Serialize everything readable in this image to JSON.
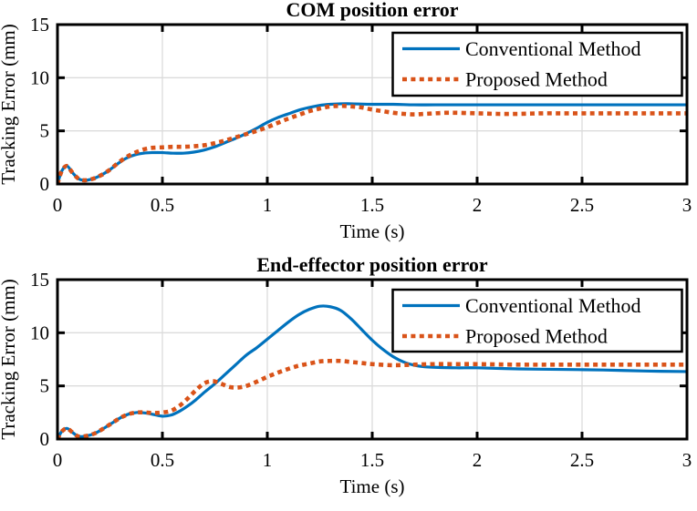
{
  "figure": {
    "background": "#ffffff"
  },
  "colors": {
    "conventional": "#0072BD",
    "proposed": "#D95319",
    "grid": "#DBDBDB",
    "axis": "#000000",
    "legend_background": "#FFFFFF"
  },
  "chart_data": [
    {
      "type": "line",
      "title": "COM position error",
      "xlabel": "Time (s)",
      "ylabel": "Tracking Error (mm)",
      "xlim": [
        0,
        3
      ],
      "ylim": [
        0,
        15
      ],
      "grid": true,
      "legend_position": "upper-right",
      "xticks": {
        "values": [
          0,
          0.5,
          1,
          1.5,
          2,
          2.5,
          3
        ],
        "labels": [
          "0",
          "0.5",
          "1",
          "1.5",
          "2",
          "2.5",
          "3"
        ]
      },
      "yticks": {
        "values": [
          0,
          5,
          10,
          15
        ],
        "labels": [
          "0",
          "5",
          "10",
          "15"
        ]
      },
      "series": [
        {
          "name": "Conventional Method",
          "style": "solid",
          "color": "#0072BD",
          "x": [
            0,
            0.02,
            0.045,
            0.07,
            0.1,
            0.13,
            0.17,
            0.21,
            0.25,
            0.29,
            0.33,
            0.37,
            0.41,
            0.45,
            0.5,
            0.55,
            0.6,
            0.65,
            0.7,
            0.75,
            0.8,
            0.85,
            0.9,
            0.95,
            1.0,
            1.05,
            1.1,
            1.15,
            1.2,
            1.25,
            1.3,
            1.35,
            1.4,
            1.5,
            1.6,
            1.7,
            1.8,
            2.0,
            2.2,
            2.4,
            2.6,
            2.8,
            3.0
          ],
          "y": [
            0,
            1.2,
            1.7,
            1.1,
            0.5,
            0.35,
            0.5,
            0.85,
            1.35,
            1.95,
            2.45,
            2.75,
            2.9,
            2.95,
            2.95,
            2.9,
            2.9,
            3.0,
            3.2,
            3.5,
            3.9,
            4.3,
            4.75,
            5.25,
            5.8,
            6.25,
            6.6,
            6.95,
            7.2,
            7.4,
            7.5,
            7.55,
            7.55,
            7.5,
            7.5,
            7.45,
            7.45,
            7.45,
            7.45,
            7.45,
            7.45,
            7.45,
            7.45
          ]
        },
        {
          "name": "Proposed Method",
          "style": "dotted",
          "color": "#D95319",
          "x": [
            0,
            0.02,
            0.045,
            0.07,
            0.1,
            0.13,
            0.17,
            0.21,
            0.25,
            0.29,
            0.33,
            0.37,
            0.41,
            0.45,
            0.5,
            0.55,
            0.6,
            0.65,
            0.7,
            0.75,
            0.8,
            0.85,
            0.9,
            0.95,
            1.0,
            1.05,
            1.1,
            1.15,
            1.2,
            1.25,
            1.3,
            1.35,
            1.4,
            1.45,
            1.5,
            1.55,
            1.6,
            1.65,
            1.7,
            1.75,
            1.8,
            1.85,
            1.9,
            2.0,
            2.1,
            2.2,
            2.3,
            2.4,
            2.5,
            2.6,
            2.8,
            3.0
          ],
          "y": [
            0,
            1.2,
            1.7,
            1.1,
            0.5,
            0.35,
            0.5,
            0.85,
            1.35,
            2.0,
            2.55,
            2.95,
            3.25,
            3.4,
            3.45,
            3.5,
            3.5,
            3.55,
            3.65,
            3.85,
            4.1,
            4.4,
            4.7,
            5.0,
            5.35,
            5.75,
            6.15,
            6.5,
            6.85,
            7.1,
            7.3,
            7.35,
            7.3,
            7.2,
            7.0,
            6.85,
            6.7,
            6.6,
            6.55,
            6.6,
            6.65,
            6.7,
            6.7,
            6.65,
            6.6,
            6.6,
            6.65,
            6.65,
            6.65,
            6.65,
            6.65,
            6.65
          ]
        }
      ]
    },
    {
      "type": "line",
      "title": "End-effector position error",
      "xlabel": "Time (s)",
      "ylabel": "Tracking Error (mm)",
      "xlim": [
        0,
        3
      ],
      "ylim": [
        0,
        15
      ],
      "grid": true,
      "legend_position": "upper-right",
      "xticks": {
        "values": [
          0,
          0.5,
          1,
          1.5,
          2,
          2.5,
          3
        ],
        "labels": [
          "0",
          "0.5",
          "1",
          "1.5",
          "2",
          "2.5",
          "3"
        ]
      },
      "yticks": {
        "values": [
          0,
          5,
          10,
          15
        ],
        "labels": [
          "0",
          "5",
          "10",
          "15"
        ]
      },
      "series": [
        {
          "name": "Conventional Method",
          "style": "solid",
          "color": "#0072BD",
          "x": [
            0,
            0.02,
            0.045,
            0.07,
            0.1,
            0.14,
            0.18,
            0.22,
            0.26,
            0.3,
            0.34,
            0.38,
            0.42,
            0.46,
            0.5,
            0.54,
            0.58,
            0.62,
            0.66,
            0.7,
            0.75,
            0.8,
            0.85,
            0.9,
            0.95,
            1.0,
            1.05,
            1.1,
            1.15,
            1.2,
            1.25,
            1.3,
            1.35,
            1.4,
            1.45,
            1.5,
            1.55,
            1.6,
            1.65,
            1.7,
            1.75,
            1.8,
            1.9,
            2.0,
            2.2,
            2.4,
            2.6,
            2.8,
            3.0
          ],
          "y": [
            0,
            0.7,
            1.0,
            0.65,
            0.25,
            0.3,
            0.55,
            1.0,
            1.5,
            2.0,
            2.35,
            2.5,
            2.45,
            2.3,
            2.15,
            2.25,
            2.6,
            3.1,
            3.7,
            4.4,
            5.2,
            6.1,
            7.0,
            7.9,
            8.6,
            9.4,
            10.2,
            11.0,
            11.7,
            12.2,
            12.5,
            12.45,
            12.1,
            11.3,
            10.3,
            9.3,
            8.45,
            7.75,
            7.25,
            6.95,
            6.8,
            6.75,
            6.7,
            6.7,
            6.6,
            6.55,
            6.5,
            6.4,
            6.35
          ]
        },
        {
          "name": "Proposed Method",
          "style": "dotted",
          "color": "#D95319",
          "x": [
            0,
            0.02,
            0.045,
            0.07,
            0.1,
            0.14,
            0.18,
            0.22,
            0.26,
            0.3,
            0.34,
            0.38,
            0.42,
            0.46,
            0.5,
            0.54,
            0.58,
            0.62,
            0.66,
            0.7,
            0.74,
            0.78,
            0.82,
            0.86,
            0.9,
            0.95,
            1.0,
            1.05,
            1.1,
            1.15,
            1.2,
            1.25,
            1.3,
            1.35,
            1.4,
            1.45,
            1.5,
            1.6,
            1.7,
            1.8,
            1.9,
            2.0,
            2.2,
            2.4,
            2.6,
            2.8,
            3.0
          ],
          "y": [
            0,
            0.7,
            1.0,
            0.65,
            0.25,
            0.3,
            0.55,
            1.0,
            1.5,
            2.0,
            2.35,
            2.5,
            2.5,
            2.45,
            2.5,
            2.65,
            3.1,
            3.8,
            4.6,
            5.25,
            5.45,
            5.2,
            4.9,
            4.85,
            5.0,
            5.4,
            5.85,
            6.25,
            6.6,
            6.9,
            7.1,
            7.3,
            7.35,
            7.35,
            7.25,
            7.15,
            7.05,
            6.95,
            7.0,
            7.05,
            7.05,
            7.05,
            7.0,
            7.0,
            7.0,
            7.0,
            7.0
          ]
        }
      ]
    }
  ]
}
